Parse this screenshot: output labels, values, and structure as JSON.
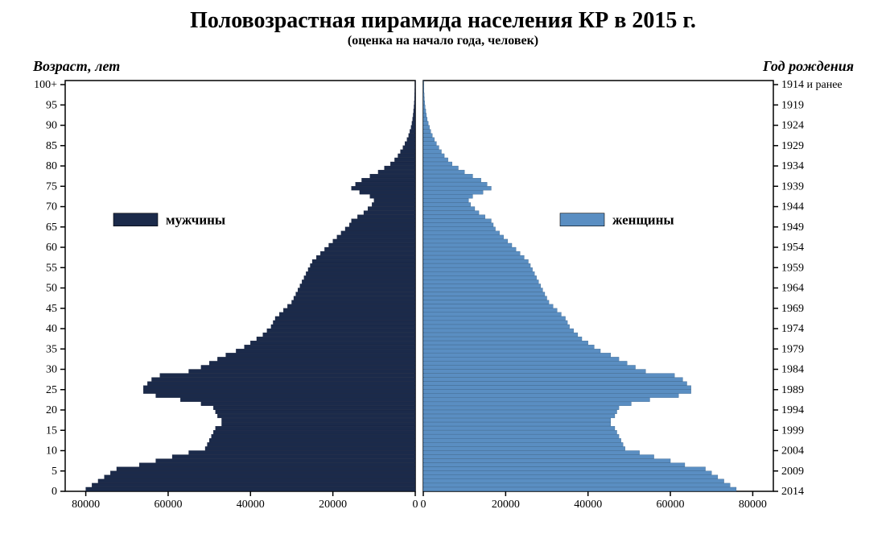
{
  "title": "Половозрастная пирамида населения КР в 2015 г.",
  "subtitle": "(оценка на начало года, человек)",
  "title_fontsize": 28,
  "subtitle_fontsize": 16,
  "axis_label_fontsize": 18,
  "tick_fontsize": 14,
  "legend_fontsize": 17,
  "background_color": "#ffffff",
  "axis_color": "#000000",
  "left": {
    "axis_label": "Возраст, лет",
    "legend_label": "мужчины",
    "bar_color": "#1b2a4a",
    "bar_stroke": "#0a1530",
    "xlim": [
      0,
      85000
    ],
    "xticks": [
      80000,
      60000,
      40000,
      20000,
      0
    ],
    "yticks": [
      0,
      5,
      10,
      15,
      20,
      25,
      30,
      35,
      40,
      45,
      50,
      55,
      60,
      65,
      70,
      75,
      80,
      85,
      90,
      95,
      "100+"
    ]
  },
  "right": {
    "axis_label": "Год рождения",
    "legend_label": "женщины",
    "bar_color": "#5a8ec2",
    "bar_stroke": "#2d577f",
    "xlim": [
      0,
      85000
    ],
    "xticks": [
      0,
      20000,
      40000,
      60000,
      80000
    ],
    "yticks": [
      "1914 и ранее",
      "1919",
      "1924",
      "1929",
      "1934",
      "1939",
      "1944",
      "1949",
      "1954",
      "1959",
      "1964",
      "1969",
      "1974",
      "1979",
      "1984",
      "1989",
      "1994",
      "1999",
      "2004",
      "2009",
      "2014"
    ]
  },
  "ages": [
    0,
    1,
    2,
    3,
    4,
    5,
    6,
    7,
    8,
    9,
    10,
    11,
    12,
    13,
    14,
    15,
    16,
    17,
    18,
    19,
    20,
    21,
    22,
    23,
    24,
    25,
    26,
    27,
    28,
    29,
    30,
    31,
    32,
    33,
    34,
    35,
    36,
    37,
    38,
    39,
    40,
    41,
    42,
    43,
    44,
    45,
    46,
    47,
    48,
    49,
    50,
    51,
    52,
    53,
    54,
    55,
    56,
    57,
    58,
    59,
    60,
    61,
    62,
    63,
    64,
    65,
    66,
    67,
    68,
    69,
    70,
    71,
    72,
    73,
    74,
    75,
    76,
    77,
    78,
    79,
    80,
    81,
    82,
    83,
    84,
    85,
    86,
    87,
    88,
    89,
    90,
    91,
    92,
    93,
    94,
    95,
    96,
    97,
    98,
    99,
    100
  ],
  "male": [
    80000,
    78500,
    77000,
    75500,
    74000,
    72500,
    67000,
    63000,
    59000,
    55000,
    51000,
    50500,
    50000,
    49500,
    49000,
    48500,
    47000,
    47000,
    48000,
    48500,
    49000,
    52000,
    57000,
    63000,
    66000,
    66000,
    65000,
    64000,
    62000,
    55000,
    52000,
    50000,
    48000,
    46000,
    43500,
    41500,
    40000,
    38500,
    37000,
    36000,
    35000,
    34500,
    34000,
    33000,
    32000,
    31000,
    30000,
    29500,
    29000,
    28500,
    28000,
    27500,
    27000,
    26500,
    26000,
    25500,
    25000,
    24000,
    23000,
    22000,
    21000,
    20000,
    19000,
    18000,
    17000,
    16000,
    15500,
    14000,
    12500,
    11500,
    10500,
    10000,
    11000,
    13500,
    15500,
    14500,
    13000,
    11000,
    9000,
    7500,
    6000,
    5000,
    4200,
    3600,
    3000,
    2500,
    2000,
    1600,
    1300,
    1000,
    800,
    650,
    500,
    400,
    300,
    230,
    180,
    140,
    100,
    70,
    50
  ],
  "female": [
    76000,
    74500,
    73000,
    71500,
    70000,
    68500,
    63500,
    60000,
    56000,
    52500,
    49000,
    48500,
    48000,
    47500,
    47000,
    46500,
    45500,
    45500,
    46500,
    47000,
    47500,
    50500,
    55000,
    62000,
    65000,
    65000,
    64000,
    63000,
    61000,
    54000,
    51500,
    49500,
    47500,
    45500,
    43000,
    41500,
    40000,
    38500,
    37500,
    36500,
    35500,
    35000,
    34500,
    33500,
    32500,
    31500,
    30500,
    30000,
    29500,
    29000,
    28500,
    28000,
    27500,
    27000,
    26500,
    26000,
    25500,
    24500,
    23500,
    22500,
    21500,
    20500,
    19500,
    18500,
    17500,
    17000,
    16500,
    15000,
    13500,
    12500,
    11500,
    11000,
    12000,
    14500,
    16500,
    15500,
    14000,
    12000,
    10000,
    8500,
    7000,
    6000,
    5100,
    4400,
    3800,
    3200,
    2700,
    2200,
    1800,
    1500,
    1200,
    950,
    750,
    600,
    450,
    350,
    270,
    210,
    160,
    110,
    80
  ]
}
